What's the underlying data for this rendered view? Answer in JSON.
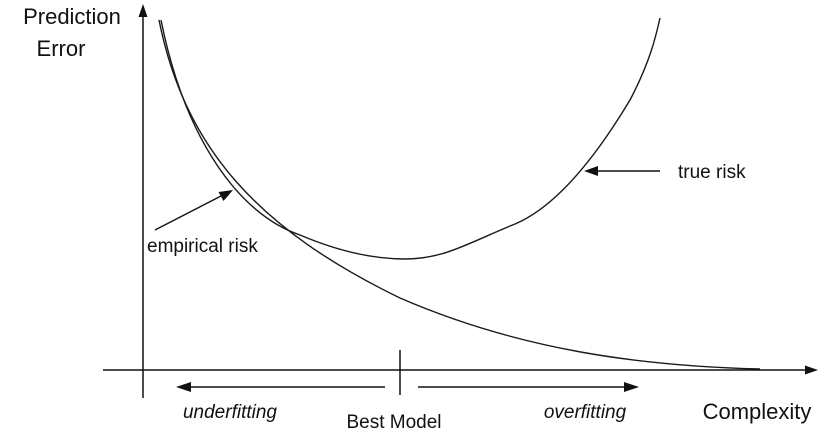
{
  "axes": {
    "y_label_line1": "Prediction",
    "y_label_line2": "Error",
    "x_label": "Complexity"
  },
  "curves": {
    "true_risk_label": "true risk",
    "empirical_risk_label": "empirical risk"
  },
  "regions": {
    "left_label": "underfitting",
    "center_label": "Best Model",
    "right_label": "overfitting"
  }
}
